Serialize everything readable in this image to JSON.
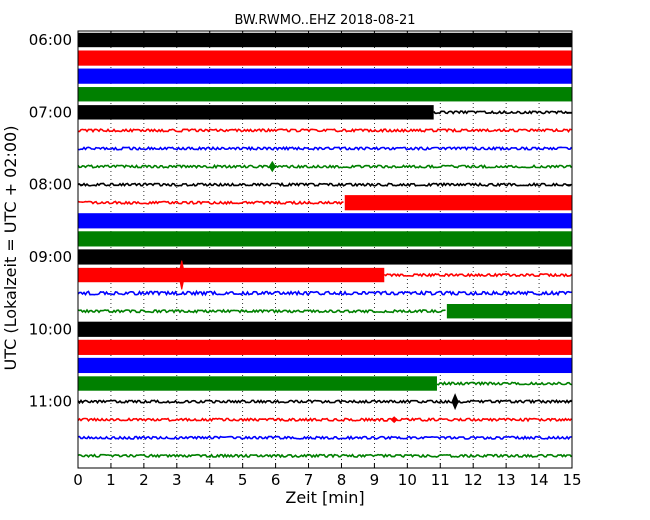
{
  "chart_data": {
    "type": "line",
    "title": "BW.RWMO..EHZ 2018-08-21",
    "xlabel": "Zeit  [min]",
    "ylabel": "UTC (Lokalzeit = UTC + 02:00)",
    "xlim": [
      0,
      15
    ],
    "x_ticks": [
      "0",
      "1",
      "2",
      "3",
      "4",
      "5",
      "6",
      "7",
      "8",
      "9",
      "10",
      "11",
      "12",
      "13",
      "14",
      "15"
    ],
    "y_tick_labels": [
      "06:00",
      "07:00",
      "08:00",
      "09:00",
      "10:00",
      "11:00"
    ],
    "grid": "vertical dotted",
    "trace_colors": [
      "#000000",
      "#ff0000",
      "#0000ff",
      "#008000"
    ],
    "traces": [
      {
        "start": "06:00",
        "segments": [
          {
            "from": 0,
            "to": 15,
            "amp": 0.9
          }
        ],
        "events": []
      },
      {
        "start": "06:15",
        "segments": [
          {
            "from": 0,
            "to": 15,
            "amp": 0.95
          }
        ],
        "events": []
      },
      {
        "start": "06:30",
        "segments": [
          {
            "from": 0,
            "to": 15,
            "amp": 0.95
          }
        ],
        "events": []
      },
      {
        "start": "06:45",
        "segments": [
          {
            "from": 0,
            "to": 15,
            "amp": 0.9
          }
        ],
        "events": []
      },
      {
        "start": "07:00",
        "segments": [
          {
            "from": 0,
            "to": 10.8,
            "amp": 0.9
          },
          {
            "from": 10.8,
            "to": 15,
            "amp": 0.15
          }
        ],
        "events": []
      },
      {
        "start": "07:15",
        "segments": [
          {
            "from": 0,
            "to": 15,
            "amp": 0.15
          }
        ],
        "events": []
      },
      {
        "start": "07:30",
        "segments": [
          {
            "from": 0,
            "to": 15,
            "amp": 0.15
          }
        ],
        "events": []
      },
      {
        "start": "07:45",
        "segments": [
          {
            "from": 0,
            "to": 15,
            "amp": 0.15
          }
        ],
        "events": [
          {
            "t": 5.9,
            "amp": 0.6
          }
        ]
      },
      {
        "start": "08:00",
        "segments": [
          {
            "from": 0,
            "to": 15,
            "amp": 0.15
          }
        ],
        "events": []
      },
      {
        "start": "08:15",
        "segments": [
          {
            "from": 0,
            "to": 8.1,
            "amp": 0.15
          },
          {
            "from": 8.1,
            "to": 15,
            "amp": 0.95
          }
        ],
        "events": []
      },
      {
        "start": "08:30",
        "segments": [
          {
            "from": 0,
            "to": 15,
            "amp": 0.95
          }
        ],
        "events": []
      },
      {
        "start": "08:45",
        "segments": [
          {
            "from": 0,
            "to": 15,
            "amp": 0.95
          }
        ],
        "events": []
      },
      {
        "start": "09:00",
        "segments": [
          {
            "from": 0,
            "to": 15,
            "amp": 0.95
          }
        ],
        "events": []
      },
      {
        "start": "09:15",
        "segments": [
          {
            "from": 0,
            "to": 9.3,
            "amp": 0.9
          },
          {
            "from": 9.3,
            "to": 15,
            "amp": 0.15
          }
        ],
        "events": [
          {
            "t": 3.15,
            "amp": 1.8
          }
        ]
      },
      {
        "start": "09:30",
        "segments": [
          {
            "from": 0,
            "to": 15,
            "amp": 0.2
          }
        ],
        "events": []
      },
      {
        "start": "09:45",
        "segments": [
          {
            "from": 0,
            "to": 11.2,
            "amp": 0.15
          },
          {
            "from": 11.2,
            "to": 15,
            "amp": 0.9
          }
        ],
        "events": []
      },
      {
        "start": "10:00",
        "segments": [
          {
            "from": 0,
            "to": 15,
            "amp": 0.95
          }
        ],
        "events": []
      },
      {
        "start": "10:15",
        "segments": [
          {
            "from": 0,
            "to": 15,
            "amp": 0.95
          }
        ],
        "events": []
      },
      {
        "start": "10:30",
        "segments": [
          {
            "from": 0,
            "to": 15,
            "amp": 0.95
          }
        ],
        "events": []
      },
      {
        "start": "10:45",
        "segments": [
          {
            "from": 0,
            "to": 10.9,
            "amp": 0.9
          },
          {
            "from": 10.9,
            "to": 15,
            "amp": 0.15
          }
        ],
        "events": []
      },
      {
        "start": "11:00",
        "segments": [
          {
            "from": 0,
            "to": 15,
            "amp": 0.15
          }
        ],
        "events": [
          {
            "t": 11.45,
            "amp": 0.9
          }
        ]
      },
      {
        "start": "11:15",
        "segments": [
          {
            "from": 0,
            "to": 15,
            "amp": 0.15
          }
        ],
        "events": [
          {
            "t": 9.6,
            "amp": 0.35
          }
        ]
      },
      {
        "start": "11:30",
        "segments": [
          {
            "from": 0,
            "to": 15,
            "amp": 0.15
          }
        ],
        "events": []
      },
      {
        "start": "11:45",
        "segments": [
          {
            "from": 0,
            "to": 15,
            "amp": 0.15
          }
        ],
        "events": []
      }
    ]
  }
}
